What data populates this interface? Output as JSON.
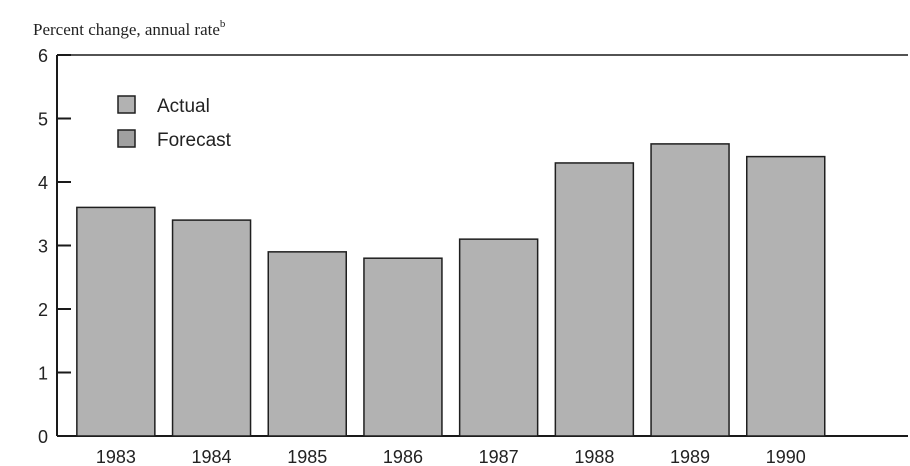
{
  "chart_data": {
    "type": "bar",
    "title": "",
    "ylabel": "Percent change, annual rate",
    "ylabel_superscript": "b",
    "xlabel": "",
    "ylim": [
      0,
      6
    ],
    "yticks": [
      "0",
      "1",
      "2",
      "3",
      "4",
      "5",
      "6"
    ],
    "categories": [
      "1983",
      "1984",
      "1985",
      "1986",
      "1987",
      "1988",
      "1989",
      "1990"
    ],
    "values": [
      3.6,
      3.4,
      2.9,
      2.8,
      3.1,
      4.3,
      4.6,
      4.4
    ],
    "legend": [
      "Actual",
      "Forecast"
    ],
    "legend_position": "top-left",
    "grid": false,
    "colors": {
      "actual": "#b2b2b2",
      "forecast": "#a0a0a0",
      "axis": "#1a1a1a"
    }
  }
}
